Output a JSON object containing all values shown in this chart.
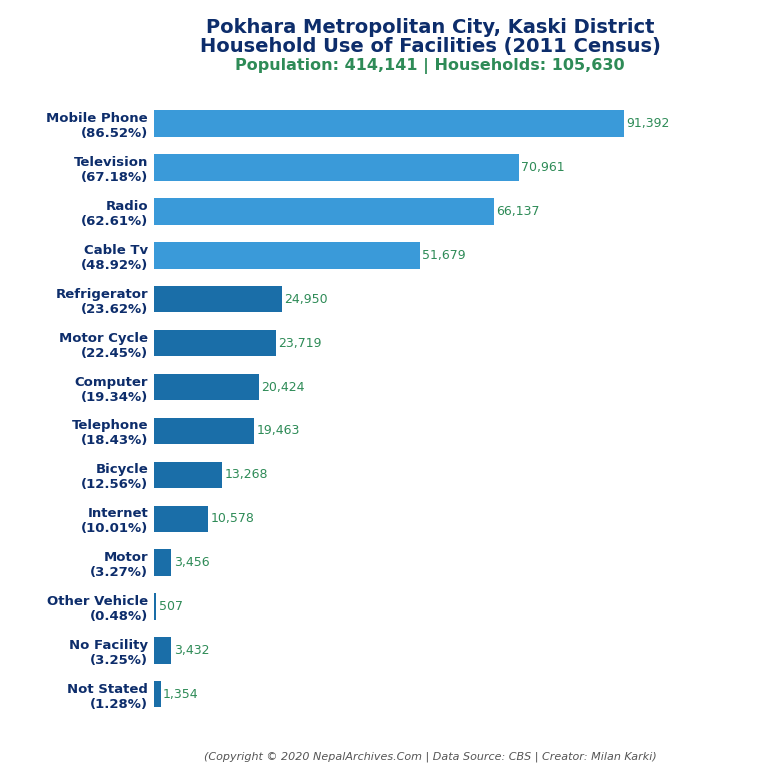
{
  "title_line1": "Pokhara Metropolitan City, Kaski District",
  "title_line2": "Household Use of Facilities (2011 Census)",
  "subtitle": "Population: 414,141 | Households: 105,630",
  "footer": "(Copyright © 2020 NepalArchives.Com | Data Source: CBS | Creator: Milan Karki)",
  "categories": [
    "Mobile Phone\n(86.52%)",
    "Television\n(67.18%)",
    "Radio\n(62.61%)",
    "Cable Tv\n(48.92%)",
    "Refrigerator\n(23.62%)",
    "Motor Cycle\n(22.45%)",
    "Computer\n(19.34%)",
    "Telephone\n(18.43%)",
    "Bicycle\n(12.56%)",
    "Internet\n(10.01%)",
    "Motor\n(3.27%)",
    "Other Vehicle\n(0.48%)",
    "No Facility\n(3.25%)",
    "Not Stated\n(1.28%)"
  ],
  "values": [
    91392,
    70961,
    66137,
    51679,
    24950,
    23719,
    20424,
    19463,
    13268,
    10578,
    3456,
    507,
    3432,
    1354
  ],
  "bar_colors": [
    "#3a9ad9",
    "#3a9ad9",
    "#3a9ad9",
    "#3a9ad9",
    "#1a6ea8",
    "#1a6ea8",
    "#1a6ea8",
    "#1a6ea8",
    "#1a6ea8",
    "#1a6ea8",
    "#1a6ea8",
    "#1a6ea8",
    "#1a6ea8",
    "#1a6ea8"
  ],
  "title_color": "#0d2d6b",
  "subtitle_color": "#2e8b57",
  "value_label_color": "#2e8b57",
  "footer_color": "#555555",
  "ylabel_color": "#0d2d6b",
  "background_color": "#ffffff",
  "xlim": [
    0,
    100000
  ],
  "title_fontsize": 14,
  "subtitle_fontsize": 11.5,
  "label_fontsize": 9.5,
  "value_fontsize": 9,
  "footer_fontsize": 8
}
